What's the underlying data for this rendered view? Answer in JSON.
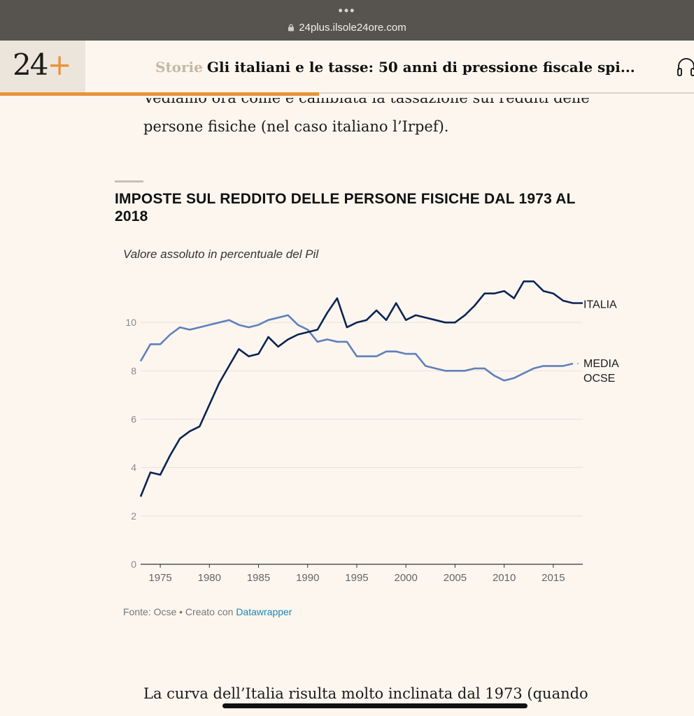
{
  "browser": {
    "url": "24plus.ilsole24ore.com",
    "dots": "•••"
  },
  "header": {
    "logo_text": "24",
    "logo_plus": "+",
    "section": "Storie",
    "title": "Gli italiani e le tasse: 50 anni di pressione fiscale spi..."
  },
  "article": {
    "para_intro": "Vediamo ora come è cambiata la tassazione sui redditi delle persone fisiche (nel caso italiano l’Irpef).",
    "para_next": "La curva dell’Italia risulta molto inclinata dal 1973 (quando"
  },
  "reading_progress": 0.46,
  "chart": {
    "title": "IMPOSTE SUL REDDITO DELLE PERSONE FISICHE DAL 1973 AL 2018",
    "subtitle": "Valore assoluto in percentuale del Pil",
    "source_prefix": "Fonte: Ocse • Creato con ",
    "source_link": "Datawrapper"
  },
  "chart_data": {
    "type": "line",
    "title": "IMPOSTE SUL REDDITO DELLE PERSONE FISICHE DAL 1973 AL 2018",
    "subtitle": "Valore assoluto in percentuale del Pil",
    "xlabel": "",
    "ylabel": "",
    "xlim": [
      1973,
      2018
    ],
    "ylim": [
      0,
      12
    ],
    "y_ticks": [
      0,
      2,
      4,
      6,
      8,
      10
    ],
    "x_ticks": [
      1975,
      1980,
      1985,
      1990,
      1995,
      2000,
      2005,
      2010,
      2015
    ],
    "grid": true,
    "legend": "direct labels at line ends (right)",
    "x": [
      1973,
      1974,
      1975,
      1976,
      1977,
      1978,
      1979,
      1980,
      1981,
      1982,
      1983,
      1984,
      1985,
      1986,
      1987,
      1988,
      1989,
      1990,
      1991,
      1992,
      1993,
      1994,
      1995,
      1996,
      1997,
      1998,
      1999,
      2000,
      2001,
      2002,
      2003,
      2004,
      2005,
      2006,
      2007,
      2008,
      2009,
      2010,
      2011,
      2012,
      2013,
      2014,
      2015,
      2016,
      2017,
      2018
    ],
    "series": [
      {
        "name": "ITALIA",
        "color": "#0b2454",
        "values": [
          2.8,
          3.8,
          3.7,
          4.5,
          5.2,
          5.5,
          5.7,
          6.6,
          7.5,
          8.2,
          8.9,
          8.6,
          8.7,
          9.4,
          9.0,
          9.3,
          9.5,
          9.6,
          9.7,
          10.4,
          11.0,
          9.8,
          10.0,
          10.1,
          10.5,
          10.1,
          10.8,
          10.1,
          10.3,
          10.2,
          10.1,
          10.0,
          10.0,
          10.3,
          10.7,
          11.2,
          11.2,
          11.3,
          11.0,
          11.7,
          11.7,
          11.3,
          11.2,
          10.9,
          10.8,
          10.8
        ]
      },
      {
        "name": "MEDIA OCSE",
        "color": "#6080bc",
        "values": [
          8.4,
          9.1,
          9.1,
          9.5,
          9.8,
          9.7,
          9.8,
          9.9,
          10.0,
          10.1,
          9.9,
          9.8,
          9.9,
          10.1,
          10.2,
          10.3,
          9.9,
          9.7,
          9.2,
          9.3,
          9.2,
          9.2,
          8.6,
          8.6,
          8.6,
          8.8,
          8.8,
          8.7,
          8.7,
          8.2,
          8.1,
          8.0,
          8.0,
          8.0,
          8.1,
          8.1,
          7.8,
          7.6,
          7.7,
          7.9,
          8.1,
          8.2,
          8.2,
          8.2,
          8.3,
          null
        ]
      }
    ]
  }
}
